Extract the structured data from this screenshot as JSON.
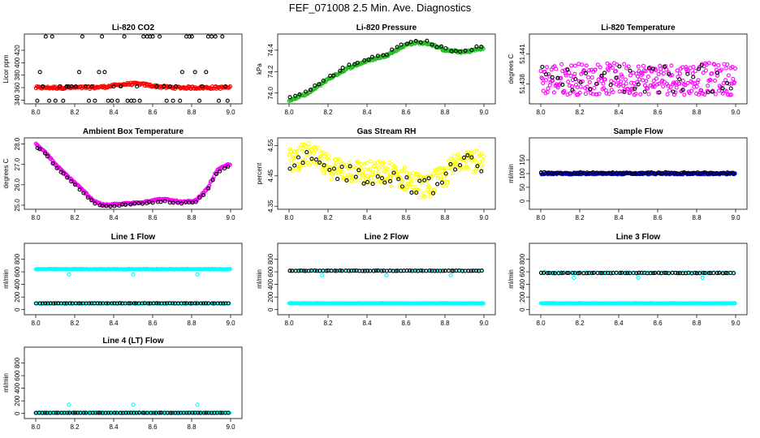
{
  "page": {
    "title": "FEF_071008  2.5 Min. Ave. Diagnostics"
  },
  "colors": {
    "red": "#ff0000",
    "green": "#22bb22",
    "magenta": "#ff00ff",
    "yellow": "#ffff00",
    "blue": "#0000cc",
    "cyan": "#00ffff",
    "black": "#000000"
  },
  "chart_data": [
    {
      "id": "p1",
      "type": "scatter",
      "title": "Li-820 CO2",
      "xlabel": "",
      "ylabel": "Licor ppm",
      "xlim": [
        8.0,
        9.0
      ],
      "ylim": [
        334,
        446
      ],
      "xticks": [
        "8.0",
        "8.2",
        "8.4",
        "8.6",
        "8.8",
        "9.0"
      ],
      "yticks": [
        "340",
        "360",
        "380",
        "400",
        "420"
      ],
      "series": [
        {
          "name": "co2",
          "color": "#ff0000",
          "pattern": "hump",
          "base": 360,
          "amp": 6,
          "center": 8.5,
          "width": 0.12,
          "noise": 2
        },
        {
          "name": "co2_ref",
          "color": "#000000",
          "pattern": "bands",
          "bands": [
            339,
            362,
            385,
            442
          ],
          "n": 60
        }
      ]
    },
    {
      "id": "p2",
      "type": "scatter",
      "title": "Li-820 Pressure",
      "xlabel": "",
      "ylabel": "kPa",
      "xlim": [
        8.0,
        9.0
      ],
      "ylim": [
        73.9,
        74.55
      ],
      "xticks": [
        "8.0",
        "8.2",
        "8.4",
        "8.6",
        "8.8",
        "9.0"
      ],
      "yticks": [
        "74.0",
        "74.2",
        "74.4"
      ],
      "series": [
        {
          "name": "pressure",
          "color": "#22bb22",
          "pattern": "path",
          "points": [
            [
              8.0,
              73.93
            ],
            [
              8.1,
              74.0
            ],
            [
              8.2,
              74.13
            ],
            [
              8.3,
              74.23
            ],
            [
              8.4,
              74.3
            ],
            [
              8.5,
              74.35
            ],
            [
              8.6,
              74.45
            ],
            [
              8.65,
              74.47
            ],
            [
              8.72,
              74.46
            ],
            [
              8.8,
              74.4
            ],
            [
              8.9,
              74.38
            ],
            [
              9.0,
              74.42
            ]
          ],
          "noise": 0.01
        },
        {
          "name": "pressure_ref",
          "color": "#000000",
          "pattern": "path",
          "points": [
            [
              8.0,
              73.95
            ],
            [
              8.1,
              74.02
            ],
            [
              8.2,
              74.15
            ],
            [
              8.3,
              74.25
            ],
            [
              8.4,
              74.31
            ],
            [
              8.5,
              74.37
            ],
            [
              8.6,
              74.46
            ],
            [
              8.65,
              74.49
            ],
            [
              8.72,
              74.47
            ],
            [
              8.8,
              74.41
            ],
            [
              8.9,
              74.39
            ],
            [
              9.0,
              74.44
            ]
          ],
          "noise": 0.015,
          "n": 40
        }
      ]
    },
    {
      "id": "p3",
      "type": "scatter",
      "title": "Li-820 Temperature",
      "xlabel": "",
      "ylabel": "degrees C",
      "xlim": [
        8.0,
        9.0
      ],
      "ylim": [
        51.436,
        51.443
      ],
      "xticks": [
        "8.0",
        "8.2",
        "8.4",
        "8.6",
        "8.8",
        "9.0"
      ],
      "yticks": [
        "51.438",
        "51.441"
      ],
      "series": [
        {
          "name": "temp",
          "color": "#ff00ff",
          "pattern": "noise",
          "base": 51.4385,
          "spread": 0.0016,
          "n": 300
        },
        {
          "name": "temp_ref",
          "color": "#000000",
          "pattern": "noise",
          "base": 51.4385,
          "spread": 0.0014,
          "n": 40
        }
      ]
    },
    {
      "id": "p4",
      "type": "scatter",
      "title": "Ambient Box Temperature",
      "xlabel": "",
      "ylabel": "degrees C",
      "xlim": [
        8.0,
        9.0
      ],
      "ylim": [
        24.8,
        28.3
      ],
      "xticks": [
        "8.0",
        "8.2",
        "8.4",
        "8.6",
        "8.8",
        "9.0"
      ],
      "yticks": [
        "25.0",
        "26.0",
        "27.0",
        "28.0"
      ],
      "series": [
        {
          "name": "amb",
          "color": "#ff00ff",
          "pattern": "path",
          "points": [
            [
              8.0,
              28.0
            ],
            [
              8.05,
              27.6
            ],
            [
              8.1,
              27.0
            ],
            [
              8.2,
              26.1
            ],
            [
              8.3,
              25.2
            ],
            [
              8.35,
              25.0
            ],
            [
              8.5,
              25.1
            ],
            [
              8.65,
              25.3
            ],
            [
              8.75,
              25.15
            ],
            [
              8.82,
              25.2
            ],
            [
              8.88,
              25.8
            ],
            [
              8.93,
              26.7
            ],
            [
              8.99,
              27.0
            ]
          ],
          "noise": 0.04
        },
        {
          "name": "amb_ref",
          "color": "#000000",
          "pattern": "path",
          "points": [
            [
              8.0,
              27.9
            ],
            [
              8.05,
              27.5
            ],
            [
              8.1,
              26.9
            ],
            [
              8.2,
              26.0
            ],
            [
              8.3,
              25.1
            ],
            [
              8.35,
              24.95
            ],
            [
              8.5,
              25.05
            ],
            [
              8.65,
              25.2
            ],
            [
              8.75,
              25.1
            ],
            [
              8.82,
              25.15
            ],
            [
              8.88,
              25.7
            ],
            [
              8.93,
              26.6
            ],
            [
              8.99,
              26.9
            ]
          ],
          "noise": 0.03,
          "n": 50
        }
      ]
    },
    {
      "id": "p5",
      "type": "scatter",
      "title": "Gas Stream RH",
      "xlabel": "",
      "ylabel": "percent",
      "xlim": [
        8.0,
        9.0
      ],
      "ylim": [
        4.34,
        4.575
      ],
      "xticks": [
        "8.0",
        "8.2",
        "8.4",
        "8.6",
        "8.8",
        "9.0"
      ],
      "yticks": [
        "4.35",
        "4.45",
        "4.55"
      ],
      "series": [
        {
          "name": "rh",
          "color": "#ffff00",
          "pattern": "path",
          "points": [
            [
              8.0,
              4.5
            ],
            [
              8.1,
              4.52
            ],
            [
              8.2,
              4.48
            ],
            [
              8.3,
              4.47
            ],
            [
              8.4,
              4.46
            ],
            [
              8.5,
              4.46
            ],
            [
              8.6,
              4.44
            ],
            [
              8.7,
              4.41
            ],
            [
              8.8,
              4.45
            ],
            [
              8.9,
              4.52
            ],
            [
              9.0,
              4.48
            ]
          ],
          "noise": 0.04,
          "n": 300
        },
        {
          "name": "rh_ref",
          "color": "#000000",
          "pattern": "path",
          "points": [
            [
              8.0,
              4.48
            ],
            [
              8.1,
              4.5
            ],
            [
              8.2,
              4.47
            ],
            [
              8.3,
              4.46
            ],
            [
              8.4,
              4.45
            ],
            [
              8.5,
              4.45
            ],
            [
              8.6,
              4.43
            ],
            [
              8.7,
              4.41
            ],
            [
              8.8,
              4.44
            ],
            [
              8.9,
              4.51
            ],
            [
              9.0,
              4.47
            ]
          ],
          "noise": 0.03,
          "n": 45
        }
      ]
    },
    {
      "id": "p6",
      "type": "scatter",
      "title": "Sample Flow",
      "xlabel": "",
      "ylabel": "ml/min",
      "xlim": [
        8.0,
        9.0
      ],
      "ylim": [
        -30,
        230
      ],
      "xticks": [
        "8.0",
        "8.2",
        "8.4",
        "8.6",
        "8.8",
        "9.0"
      ],
      "yticks": [
        "0",
        "50",
        "100",
        "150"
      ],
      "series": [
        {
          "name": "sample",
          "color": "#0000cc",
          "pattern": "flat",
          "base": 100,
          "noise": 3,
          "n": 250
        },
        {
          "name": "sample_ref",
          "color": "#000000",
          "pattern": "flat",
          "base": 102,
          "noise": 3,
          "n": 60
        }
      ]
    },
    {
      "id": "p7",
      "type": "scatter",
      "title": "Line 1 Flow",
      "xlabel": "",
      "ylabel": "ml/min",
      "xlim": [
        8.0,
        9.0
      ],
      "ylim": [
        -80,
        1050
      ],
      "xticks": [
        "8.0",
        "8.2",
        "8.4",
        "8.6",
        "8.8",
        "9.0"
      ],
      "yticks": [
        "0",
        "200",
        "400",
        "600",
        "800"
      ],
      "series": [
        {
          "name": "line1",
          "color": "#00ffff",
          "pattern": "flat",
          "base": 640,
          "noise": 4,
          "n": 250,
          "dips": [
            [
              8.17,
              555
            ],
            [
              8.5,
              555
            ],
            [
              8.83,
              555
            ]
          ]
        },
        {
          "name": "line1_low",
          "color": "#00ffff",
          "pattern": "flat",
          "base": 100,
          "noise": 2,
          "n": 120
        },
        {
          "name": "line1_ref",
          "color": "#000000",
          "pattern": "flat",
          "base": 100,
          "noise": 2,
          "n": 70
        }
      ]
    },
    {
      "id": "p8",
      "type": "scatter",
      "title": "Line 2 Flow",
      "xlabel": "",
      "ylabel": "ml/min",
      "xlim": [
        8.0,
        9.0
      ],
      "ylim": [
        -80,
        1050
      ],
      "xticks": [
        "8.0",
        "8.2",
        "8.4",
        "8.6",
        "8.8",
        "9.0"
      ],
      "yticks": [
        "0",
        "200",
        "400",
        "600",
        "800"
      ],
      "series": [
        {
          "name": "line2",
          "color": "#00ffff",
          "pattern": "flat",
          "base": 100,
          "noise": 3,
          "n": 250
        },
        {
          "name": "line2_high",
          "color": "#00ffff",
          "pattern": "flat",
          "base": 620,
          "noise": 3,
          "n": 60,
          "dips": [
            [
              8.17,
              545
            ],
            [
              8.5,
              545
            ],
            [
              8.83,
              545
            ]
          ]
        },
        {
          "name": "line2_ref",
          "color": "#000000",
          "pattern": "flat",
          "base": 615,
          "noise": 3,
          "n": 70
        }
      ]
    },
    {
      "id": "p9",
      "type": "scatter",
      "title": "Line 3 Flow",
      "xlabel": "",
      "ylabel": "ml/min",
      "xlim": [
        8.0,
        9.0
      ],
      "ylim": [
        -80,
        1050
      ],
      "xticks": [
        "8.0",
        "8.2",
        "8.4",
        "8.6",
        "8.8",
        "9.0"
      ],
      "yticks": [
        "0",
        "200",
        "400",
        "600",
        "800"
      ],
      "series": [
        {
          "name": "line3",
          "color": "#00ffff",
          "pattern": "flat",
          "base": 100,
          "noise": 3,
          "n": 250
        },
        {
          "name": "line3_high",
          "color": "#00ffff",
          "pattern": "flat",
          "base": 585,
          "noise": 3,
          "n": 60,
          "dips": [
            [
              8.02,
              600
            ],
            [
              8.17,
              505
            ],
            [
              8.5,
              505
            ],
            [
              8.83,
              505
            ]
          ]
        },
        {
          "name": "line3_ref",
          "color": "#000000",
          "pattern": "flat",
          "base": 580,
          "noise": 3,
          "n": 70
        }
      ]
    },
    {
      "id": "p10",
      "type": "scatter",
      "title": "Line 4 (LT) Flow",
      "xlabel": "",
      "ylabel": "ml/min",
      "xlim": [
        8.0,
        9.0
      ],
      "ylim": [
        -80,
        1050
      ],
      "xticks": [
        "8.0",
        "8.2",
        "8.4",
        "8.6",
        "8.8",
        "9.0"
      ],
      "yticks": [
        "0",
        "200",
        "400",
        "600",
        "800"
      ],
      "series": [
        {
          "name": "line4",
          "color": "#00ffff",
          "pattern": "flat",
          "base": 10,
          "noise": 2,
          "n": 200,
          "dips": [
            [
              8.17,
              140
            ],
            [
              8.5,
              140
            ],
            [
              8.83,
              140
            ]
          ]
        },
        {
          "name": "line4_ref",
          "color": "#000000",
          "pattern": "flat",
          "base": 10,
          "noise": 2,
          "n": 70
        }
      ]
    }
  ]
}
